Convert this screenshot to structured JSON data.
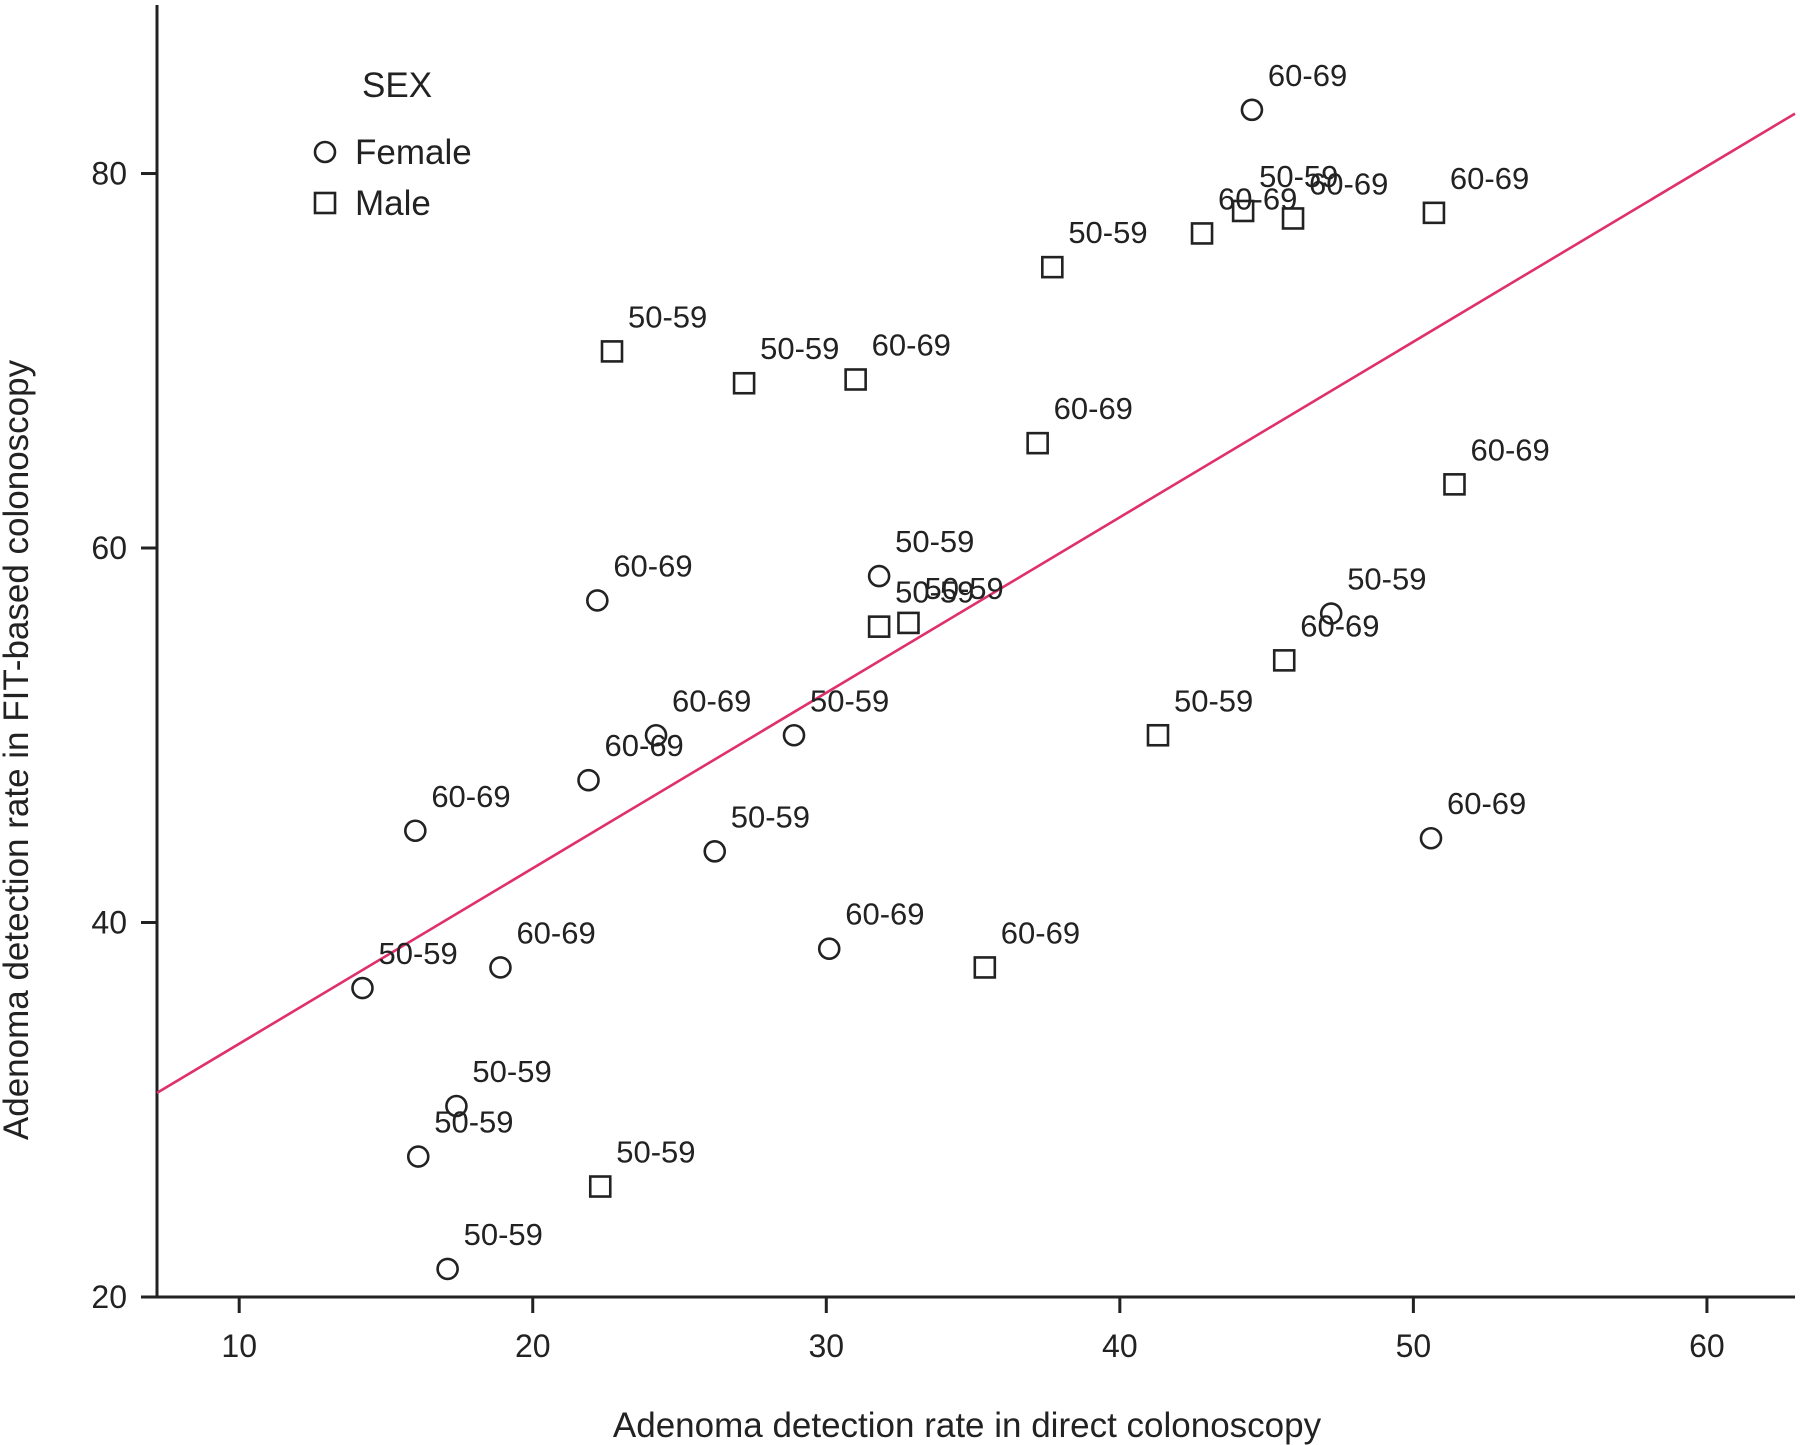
{
  "chart_data": {
    "type": "scatter",
    "xlabel": "Adenoma detection rate in direct colonoscopy",
    "ylabel": "Adenoma detection rate in FIT-based colonoscopy",
    "xlim": [
      7.2,
      63
    ],
    "ylim": [
      20,
      89
    ],
    "xticks": [
      10,
      20,
      30,
      40,
      50,
      60
    ],
    "yticks": [
      20,
      40,
      60,
      80
    ],
    "grid": false,
    "legend": {
      "title": "SEX",
      "placement": "top-left",
      "entries": [
        {
          "label": "Female",
          "marker": "circle"
        },
        {
          "label": "Male",
          "marker": "square"
        }
      ]
    },
    "fit_line": {
      "x": [
        7.2,
        63
      ],
      "y": [
        30.9,
        83.2
      ],
      "color": "#e0306a"
    },
    "series": [
      {
        "name": "Female",
        "marker": "circle",
        "points": [
          {
            "x": 44.5,
            "y": 83.4,
            "label": "60-69"
          },
          {
            "x": 31.8,
            "y": 58.5,
            "label": "50-59"
          },
          {
            "x": 22.2,
            "y": 57.2,
            "label": "60-69"
          },
          {
            "x": 47.2,
            "y": 56.5,
            "label": "50-59"
          },
          {
            "x": 24.2,
            "y": 50.0,
            "label": "60-69"
          },
          {
            "x": 28.9,
            "y": 50.0,
            "label": "50-59"
          },
          {
            "x": 21.9,
            "y": 47.6,
            "label": "60-69"
          },
          {
            "x": 16.0,
            "y": 44.9,
            "label": "60-69"
          },
          {
            "x": 26.2,
            "y": 43.8,
            "label": "50-59"
          },
          {
            "x": 50.6,
            "y": 44.5,
            "label": "60-69"
          },
          {
            "x": 30.1,
            "y": 38.6,
            "label": "60-69"
          },
          {
            "x": 18.9,
            "y": 37.6,
            "label": "60-69"
          },
          {
            "x": 14.2,
            "y": 36.5,
            "label": "50-59"
          },
          {
            "x": 17.4,
            "y": 30.2,
            "label": "50-59"
          },
          {
            "x": 16.1,
            "y": 27.5,
            "label": "50-59"
          },
          {
            "x": 17.1,
            "y": 21.5,
            "label": "50-59"
          }
        ]
      },
      {
        "name": "Male",
        "marker": "square",
        "points": [
          {
            "x": 44.2,
            "y": 78.0,
            "label": "50-59"
          },
          {
            "x": 42.8,
            "y": 76.8,
            "label": "60-69"
          },
          {
            "x": 45.9,
            "y": 77.6,
            "label": "60-69"
          },
          {
            "x": 50.7,
            "y": 77.9,
            "label": "60-69"
          },
          {
            "x": 37.7,
            "y": 75.0,
            "label": "50-59"
          },
          {
            "x": 22.7,
            "y": 70.5,
            "label": "50-59"
          },
          {
            "x": 27.2,
            "y": 68.8,
            "label": "50-59"
          },
          {
            "x": 31.0,
            "y": 69.0,
            "label": "60-69"
          },
          {
            "x": 37.2,
            "y": 65.6,
            "label": "60-69"
          },
          {
            "x": 51.4,
            "y": 63.4,
            "label": "60-69"
          },
          {
            "x": 31.8,
            "y": 55.8,
            "label": "50-59"
          },
          {
            "x": 32.8,
            "y": 56.0,
            "label": "50-59"
          },
          {
            "x": 45.6,
            "y": 54.0,
            "label": "60-69"
          },
          {
            "x": 41.3,
            "y": 50.0,
            "label": "50-59"
          },
          {
            "x": 35.4,
            "y": 37.6,
            "label": "60-69"
          },
          {
            "x": 22.3,
            "y": 25.9,
            "label": "50-59"
          }
        ]
      }
    ]
  }
}
